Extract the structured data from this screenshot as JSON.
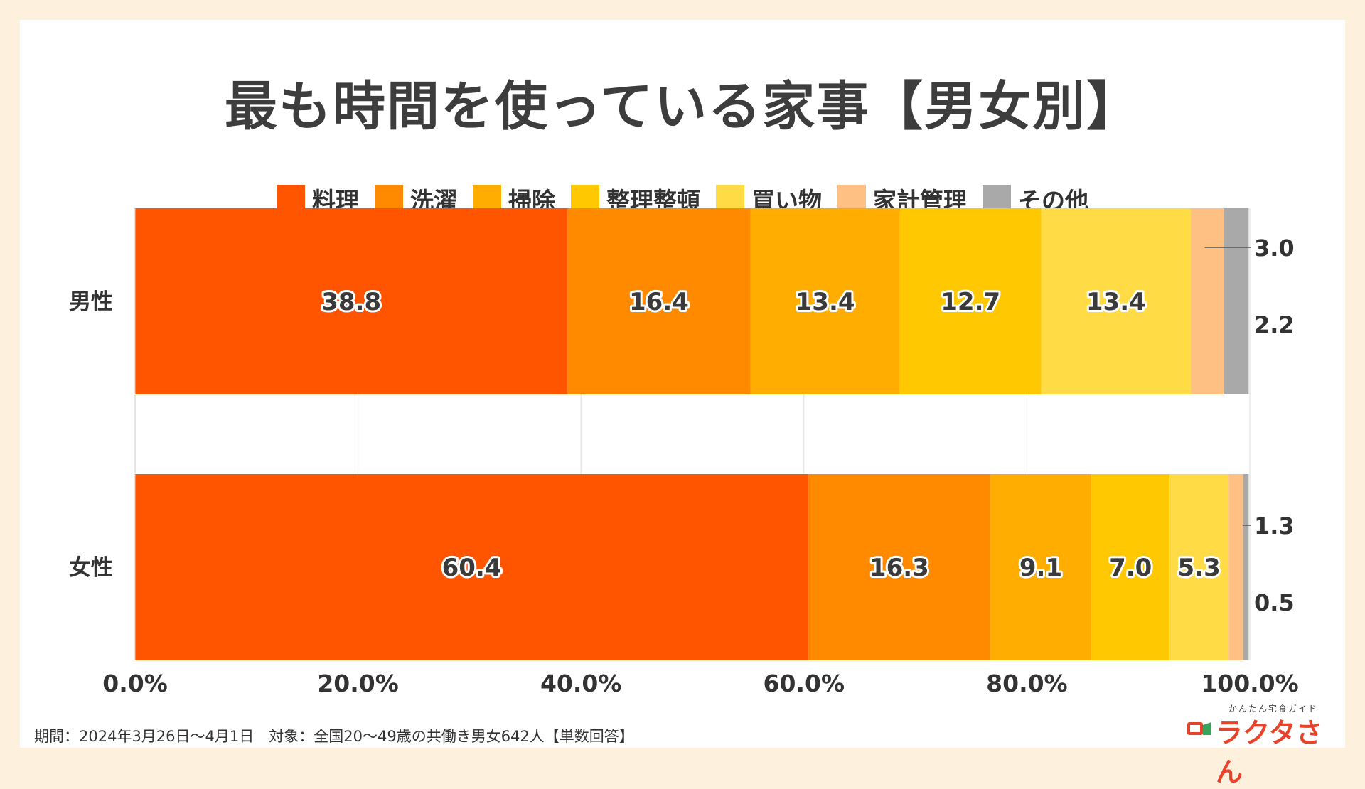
{
  "title": "最も時間を使っている家事【男女別】",
  "footnote": "期間：2024年3月26日〜4月1日　対象：全国20〜49歳の共働き男女642人【単数回答】",
  "logo": {
    "subtitle": "かんたん宅食ガイド",
    "name": "ラクタさん"
  },
  "chart_data": {
    "type": "bar",
    "orientation": "horizontal",
    "stacked": true,
    "categories": [
      "男性",
      "女性"
    ],
    "series": [
      {
        "name": "料理",
        "color": "#ff5500",
        "values": [
          38.8,
          60.4
        ],
        "labels": [
          "38.8",
          "60.4"
        ]
      },
      {
        "name": "洗濯",
        "color": "#ff8a00",
        "values": [
          16.4,
          16.3
        ],
        "labels": [
          "16.4",
          "16.3"
        ]
      },
      {
        "name": "掃除",
        "color": "#ffad00",
        "values": [
          13.4,
          9.1
        ],
        "labels": [
          "13.4",
          "9.1"
        ]
      },
      {
        "name": "整理整頓",
        "color": "#ffc800",
        "values": [
          12.7,
          7.0
        ],
        "labels": [
          "12.7",
          "7.0"
        ]
      },
      {
        "name": "買い物",
        "color": "#ffdc45",
        "values": [
          13.4,
          5.3
        ],
        "labels": [
          "13.4",
          "5.3"
        ]
      },
      {
        "name": "家計管理",
        "color": "#ffc083",
        "values": [
          3.0,
          1.3
        ],
        "labels": [
          "3.0",
          "1.3"
        ]
      },
      {
        "name": "その他",
        "color": "#a9a9a9",
        "values": [
          2.2,
          0.5
        ],
        "labels": [
          "2.2",
          "0.5"
        ]
      }
    ],
    "xlim": [
      0,
      100
    ],
    "xticks": [
      "0.0%",
      "20.0%",
      "40.0%",
      "60.0%",
      "80.0%",
      "100.0%"
    ],
    "grid": true,
    "legend_position": "top"
  }
}
